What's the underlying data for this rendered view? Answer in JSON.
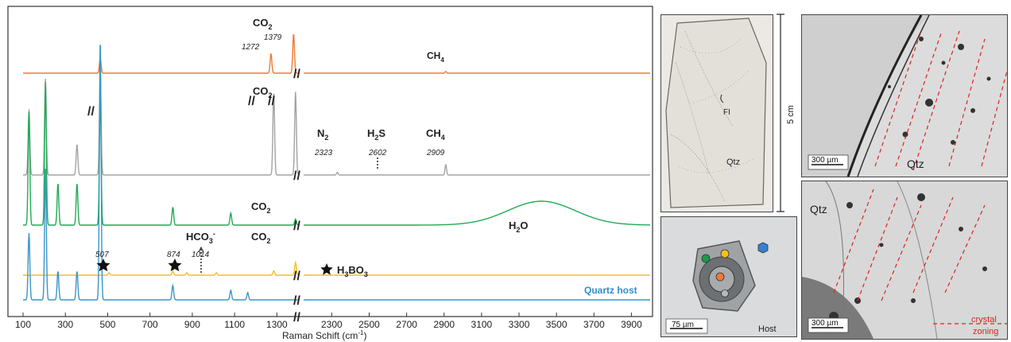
{
  "chart_data": {
    "type": "line",
    "xlabel": "Raman Schift (cm",
    "xlabel_sup": "-1",
    "xlabel_close": ")",
    "x_segments": [
      [
        100,
        1400
      ],
      [
        2150,
        4000
      ]
    ],
    "axis_break": "//",
    "xticks": [
      "100",
      "300",
      "500",
      "700",
      "900",
      "1100",
      "1300",
      "2300",
      "2500",
      "2700",
      "2900",
      "3100",
      "3300",
      "3500",
      "3700",
      "3900"
    ],
    "series": [
      {
        "color": "#f07a35",
        "peaks": [
          {
            "x": 465,
            "y": 0.35
          },
          {
            "x": 1272,
            "y": 0.45
          },
          {
            "x": 1379,
            "y": 0.9
          },
          {
            "x": 2909,
            "y": 0.04
          }
        ]
      },
      {
        "color": "#a3a3a3",
        "peaks": [
          {
            "x": 128,
            "y": 0.75
          },
          {
            "x": 206,
            "y": 1.1
          },
          {
            "x": 355,
            "y": 0.35
          },
          {
            "x": 465,
            "y": 1.15
          },
          {
            "x": 1285,
            "y": 0.95
          },
          {
            "x": 1388,
            "y": 0.95
          },
          {
            "x": 2330,
            "y": 0.03
          },
          {
            "x": 2909,
            "y": 0.12
          }
        ]
      },
      {
        "color": "#22aa55",
        "peaks": [
          {
            "x": 128,
            "y": 0.95
          },
          {
            "x": 206,
            "y": 1.2
          },
          {
            "x": 265,
            "y": 0.35
          },
          {
            "x": 355,
            "y": 0.35
          },
          {
            "x": 465,
            "y": 1.1
          },
          {
            "x": 808,
            "y": 0.15
          },
          {
            "x": 1082,
            "y": 0.1
          },
          {
            "x": 1388,
            "y": 0.05
          },
          {
            "x": 3420,
            "y": 0.2
          }
        ]
      },
      {
        "color": "#f2c21b",
        "peaks": [
          {
            "x": 507,
            "y": 0.04
          },
          {
            "x": 808,
            "y": 0.06
          },
          {
            "x": 874,
            "y": 0.04
          },
          {
            "x": 1014,
            "y": 0.04
          },
          {
            "x": 1285,
            "y": 0.07
          },
          {
            "x": 1388,
            "y": 0.2
          }
        ]
      },
      {
        "name": "Quartz host",
        "color": "#3a96c8",
        "peaks": [
          {
            "x": 128,
            "y": 0.28
          },
          {
            "x": 206,
            "y": 0.55
          },
          {
            "x": 265,
            "y": 0.12
          },
          {
            "x": 355,
            "y": 0.12
          },
          {
            "x": 465,
            "y": 1.1
          },
          {
            "x": 808,
            "y": 0.06
          },
          {
            "x": 1082,
            "y": 0.04
          },
          {
            "x": 1162,
            "y": 0.03
          }
        ]
      }
    ],
    "annotations": [
      {
        "id": "co2-top",
        "text": "CO",
        "sub": "2"
      },
      {
        "id": "n1272",
        "text": "1272"
      },
      {
        "id": "n1379",
        "text": "1379"
      },
      {
        "id": "ch4-top",
        "text": "CH",
        "sub": "4"
      },
      {
        "id": "co2-grey",
        "text": "CO",
        "sub": "2"
      },
      {
        "id": "n2",
        "text": "N",
        "sub": "2"
      },
      {
        "id": "n2323",
        "text": "2323"
      },
      {
        "id": "h2s",
        "text": "H",
        "sub": "2",
        "tail": "S"
      },
      {
        "id": "n2602",
        "text": "2602"
      },
      {
        "id": "ch4-grey",
        "text": "CH",
        "sub": "4"
      },
      {
        "id": "n2909",
        "text": "2909"
      },
      {
        "id": "co2-green",
        "text": "CO",
        "sub": "2"
      },
      {
        "id": "h2o",
        "text": "H",
        "sub": "2",
        "tail": "O"
      },
      {
        "id": "hco3",
        "text": "HCO",
        "sub": "3",
        "sup": "-"
      },
      {
        "id": "co2-yellow",
        "text": "CO",
        "sub": "2"
      },
      {
        "id": "n507",
        "text": "507"
      },
      {
        "id": "n874",
        "text": "874"
      },
      {
        "id": "n1014",
        "text": "1014"
      },
      {
        "id": "h3bo3",
        "text": "H",
        "sub": "3",
        "tail": "BO",
        "sub2": "3"
      },
      {
        "id": "quartz-host",
        "text": "Quartz host"
      }
    ]
  },
  "photos": {
    "sample": {
      "label_fi": "FI",
      "label_qtz": "Qtz",
      "scale": "5 cm"
    },
    "inclusion": {
      "scale": "75 µm",
      "label_host": "Host",
      "dots": {
        "green": "#1a9a4a",
        "yellow": "#f2c21b",
        "blue": "#3a7fd0",
        "orange": "#f07a35",
        "grey": "#b8b8b8"
      }
    },
    "micro_top": {
      "scale": "300 µm",
      "label": "Qtz"
    },
    "micro_bottom": {
      "scale": "300 µm",
      "label": "Qtz",
      "zoning_line1": "crystal",
      "zoning_line2": "zoning"
    }
  }
}
